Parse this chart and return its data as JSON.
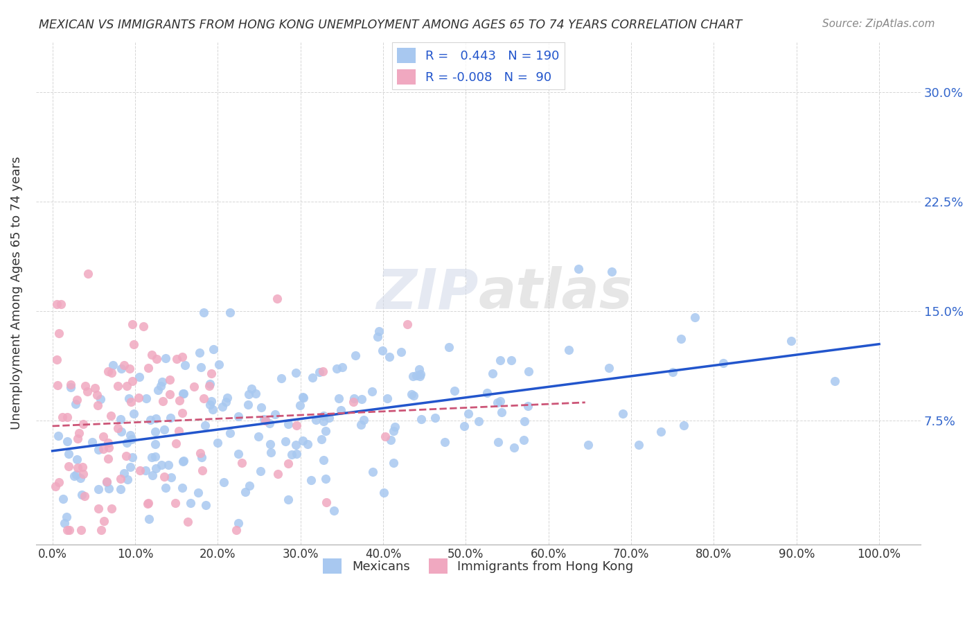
{
  "title": "MEXICAN VS IMMIGRANTS FROM HONG KONG UNEMPLOYMENT AMONG AGES 65 TO 74 YEARS CORRELATION CHART",
  "source": "Source: ZipAtlas.com",
  "ylabel_label": "Unemployment Among Ages 65 to 74 years",
  "legend_bottom": [
    "Mexicans",
    "Immigrants from Hong Kong"
  ],
  "r_mexican": 0.443,
  "n_mexican": 190,
  "r_hk": -0.008,
  "n_hk": 90,
  "watermark_zip": "ZIP",
  "watermark_atlas": "atlas",
  "color_mexican": "#a8c8f0",
  "color_hk": "#f0a8c0",
  "line_mexican": "#2255cc",
  "line_hk": "#cc5577",
  "background": "#ffffff",
  "seed_mexican": 42,
  "seed_hk": 99
}
